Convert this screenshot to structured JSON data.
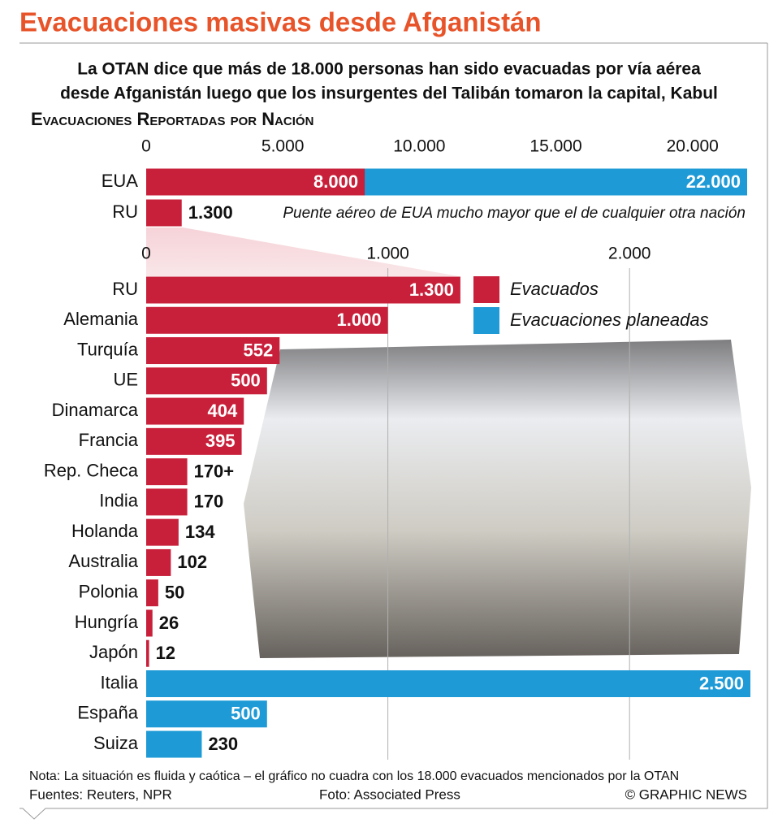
{
  "header": {
    "title": "Evacuaciones masivas desde Afganistán",
    "subtitle": [
      "La OTAN dice que más de 18.000 personas han sido evacuadas por vía aérea",
      "desde Afganistán luego que los insurgentes del Talibán tomaron la capital, Kabul"
    ],
    "section": "Evacuaciones Reportadas por Nación"
  },
  "chart_data": [
    {
      "type": "bar",
      "orientation": "horizontal",
      "categories": [
        "EUA",
        "RU"
      ],
      "series": [
        {
          "name": "Evacuaciones planeadas",
          "color": "#1e9ad6",
          "values": [
            22000,
            null
          ],
          "value_labels": [
            "22.000",
            null
          ]
        },
        {
          "name": "Evacuados",
          "color": "#c8203a",
          "values": [
            8000,
            1300
          ],
          "value_labels": [
            "8.000",
            "1.300"
          ]
        }
      ],
      "xlim": [
        0,
        22000
      ],
      "xticks": [
        0,
        {
          "value": 5000,
          "label": "5.000"
        },
        {
          "value": 10000,
          "label": "10.000"
        },
        {
          "value": 15000,
          "label": "15.000"
        },
        {
          "value": 20000,
          "label": "20.000"
        }
      ],
      "grid": false,
      "annotation": "Puente aéreo de EUA mucho mayor que el de cualquier otra nación"
    },
    {
      "type": "bar",
      "orientation": "horizontal",
      "categories": [
        "RU",
        "Alemania",
        "Turquía",
        "UE",
        "Dinamarca",
        "Francia",
        "Rep. Checa",
        "India",
        "Holanda",
        "Australia",
        "Polonia",
        "Hungría",
        "Japón",
        "Italia",
        "España",
        "Suiza"
      ],
      "series": [
        {
          "name": "Evacuados",
          "color": "#c8203a",
          "values": [
            1300,
            1000,
            552,
            500,
            404,
            395,
            170,
            170,
            134,
            102,
            50,
            26,
            12,
            null,
            null,
            null
          ],
          "value_labels": [
            "1.300",
            "1.000",
            "552",
            "500",
            "404",
            "395",
            "170+",
            "170",
            "134",
            "102",
            "50",
            "26",
            "12",
            null,
            null,
            null
          ]
        },
        {
          "name": "Evacuaciones planeadas",
          "color": "#1e9ad6",
          "values": [
            null,
            null,
            null,
            null,
            null,
            null,
            null,
            null,
            null,
            null,
            null,
            null,
            null,
            2500,
            500,
            230
          ],
          "value_labels": [
            null,
            null,
            null,
            null,
            null,
            null,
            null,
            null,
            null,
            null,
            null,
            null,
            null,
            "2.500",
            "500",
            "230"
          ]
        }
      ],
      "xlim": [
        0,
        2500
      ],
      "xticks": [
        0,
        {
          "value": 1000,
          "label": "1.000"
        },
        {
          "value": 2000,
          "label": "2.000"
        }
      ],
      "grid": true,
      "legend": "top-right"
    }
  ],
  "footer": {
    "note": "Nota: La situación es fluida y caótica – el gráfico no cuadra con los 18.000 evacuados mencionados por la OTAN",
    "sources": "Fuentes: Reuters, NPR",
    "photo": "Foto: Associated Press",
    "credit": "© GRAPHIC NEWS"
  }
}
